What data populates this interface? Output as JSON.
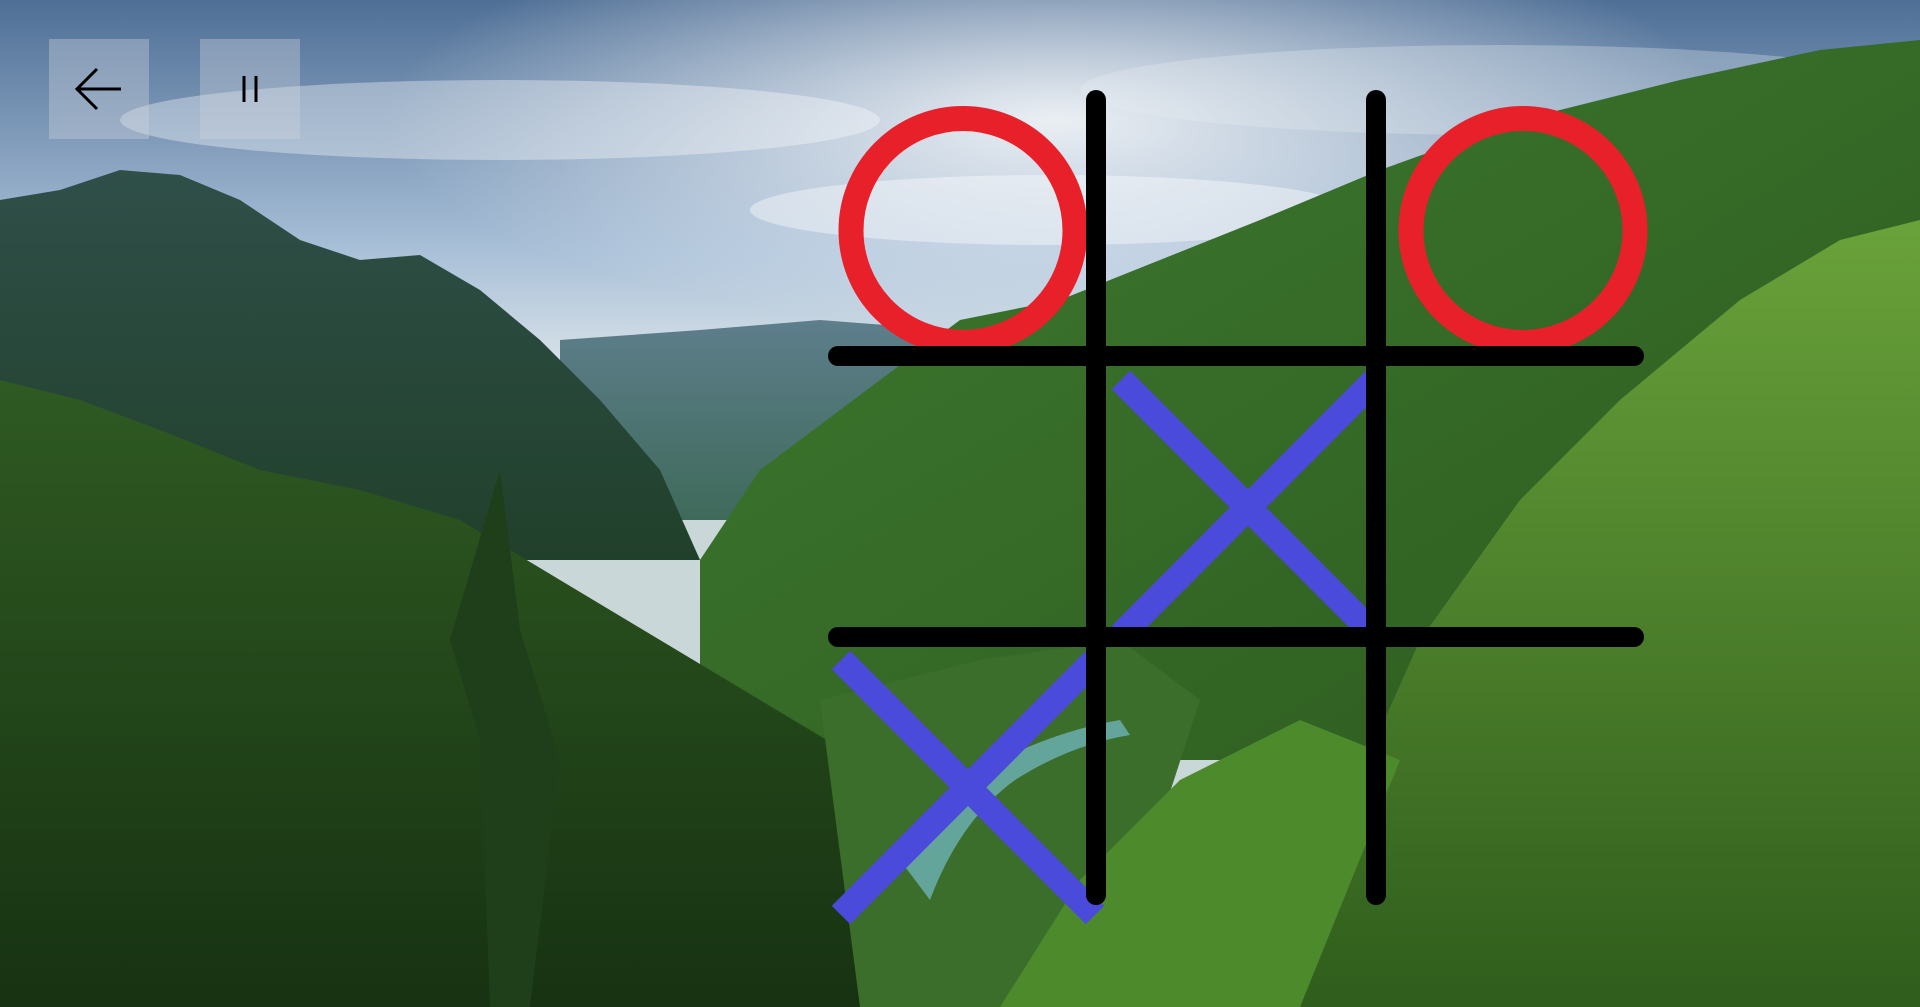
{
  "toolbar": {
    "back_icon": "arrow-left-icon",
    "pause_icon": "pause-icon"
  },
  "board": {
    "rows": 3,
    "cols": 3,
    "cells": [
      [
        "O",
        "",
        "O"
      ],
      [
        "",
        "X",
        ""
      ],
      [
        "X",
        "",
        ""
      ]
    ]
  },
  "colors": {
    "o_mark": "#e8202a",
    "x_mark": "#4a4adb",
    "grid": "#000000"
  },
  "background": {
    "scene": "mountain-forest-valley-photo"
  }
}
